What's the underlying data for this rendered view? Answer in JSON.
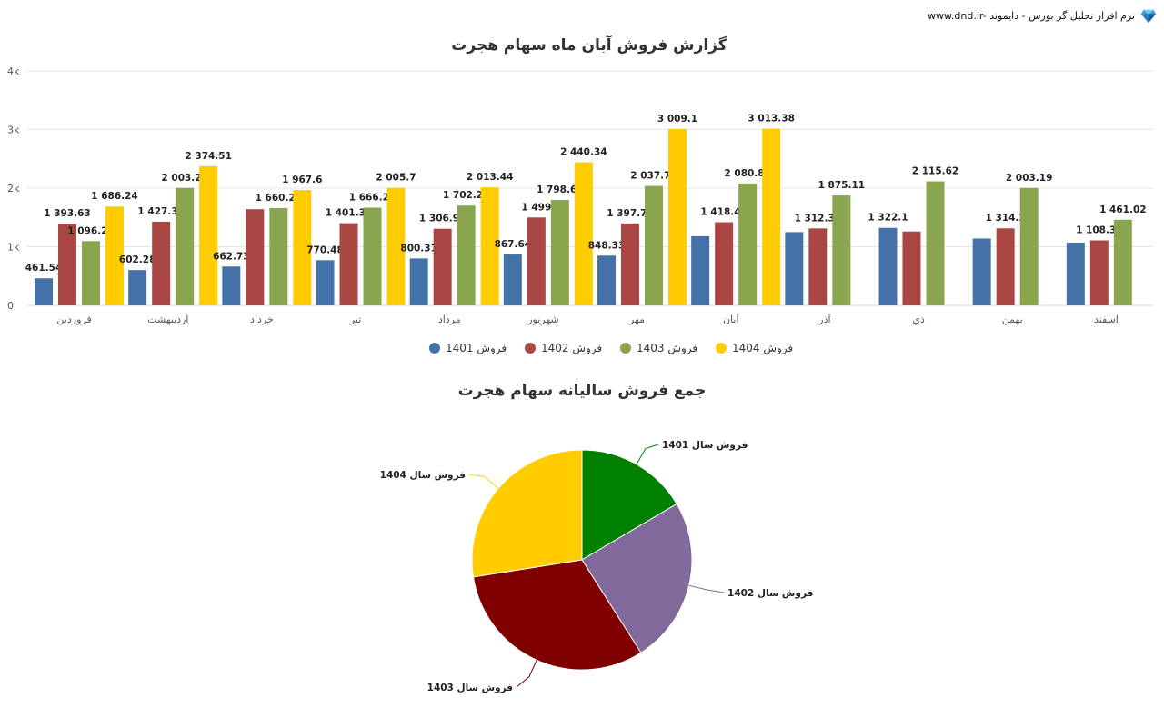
{
  "header": {
    "brand_text": "www.dnd.ir- نرم افزار تحلیل گر بورس - دایموند",
    "logo_icon": "diamond-icon"
  },
  "chart_data": [
    {
      "type": "bar",
      "title": "گزارش فروش آبان ماه سهام هجرت",
      "xlabel": "",
      "ylabel": "",
      "ylim": [
        0,
        4000
      ],
      "y_ticks": [
        "0",
        "1k",
        "2k",
        "3k",
        "4k"
      ],
      "grid": true,
      "legend": "bottom",
      "categories": [
        "فروردین",
        "اردیبهشت",
        "خرداد",
        "تیر",
        "مرداد",
        "شهریور",
        "مهر",
        "آبان",
        "آذر",
        "دي",
        "بهمن",
        "اسفند"
      ],
      "series": [
        {
          "name": "فروش 1401",
          "color": "#4472a8",
          "values": [
            461.54,
            602.28,
            662.73,
            770.48,
            800.31,
            867.64,
            848.33,
            1180,
            1250,
            1322.1,
            1140,
            1070
          ],
          "labels": [
            "461.54",
            "602.28",
            "662.73",
            "770.48",
            "800.31",
            "867.64",
            "848.33",
            "",
            "",
            "1 322.1",
            "",
            ""
          ]
        },
        {
          "name": "فروش 1402",
          "color": "#aa4643",
          "values": [
            1393.63,
            1427.35,
            1640,
            1401.37,
            1306.95,
            1499,
            1397.76,
            1418.45,
            1312.39,
            1260,
            1314.2,
            1108.39
          ],
          "labels": [
            "1 393.63",
            "1 427.35",
            "",
            "1 401.37",
            "1 306.95",
            "1 499",
            "1 397.76",
            "1 418.45",
            "1 312.39",
            "",
            "1 314.2",
            "1 108.39"
          ]
        },
        {
          "name": "فروش 1403",
          "color": "#89a54e",
          "values": [
            1096.27,
            2003.27,
            1660.26,
            1666.29,
            1702.26,
            1798.63,
            2037.73,
            2080.86,
            1875.11,
            2115.62,
            2003.19,
            1461.02
          ],
          "labels": [
            "1 096.27",
            "2 003.27",
            "1 660.26",
            "1 666.29",
            "1 702.26",
            "1 798.63",
            "2 037.73",
            "2 080.86",
            "1 875.11",
            "2 115.62",
            "2 003.19",
            "1 461.02"
          ]
        },
        {
          "name": "فروش 1404",
          "color": "#ffcc00",
          "values": [
            1686.24,
            2374.51,
            1967.6,
            2005.7,
            2013.44,
            2440.34,
            3009.1,
            3013.38,
            null,
            null,
            null,
            null
          ],
          "labels": [
            "1 686.24",
            "2 374.51",
            "1 967.6",
            "2 005.7",
            "2 013.44",
            "2 440.34",
            "3 009.1",
            "3 013.38",
            "",
            "",
            "",
            ""
          ]
        }
      ]
    },
    {
      "type": "pie",
      "title": "جمع فروش سالیانه سهام هجرت",
      "slices": [
        {
          "label": "فروش سال 1401",
          "value": 16.5,
          "color": "#008000"
        },
        {
          "label": "فروش سال 1402",
          "value": 24.5,
          "color": "#806a9b"
        },
        {
          "label": "فروش سال 1403",
          "value": 31.5,
          "color": "#800000"
        },
        {
          "label": "فروش سال 1404",
          "value": 27.5,
          "color": "#ffcc00"
        }
      ]
    }
  ]
}
